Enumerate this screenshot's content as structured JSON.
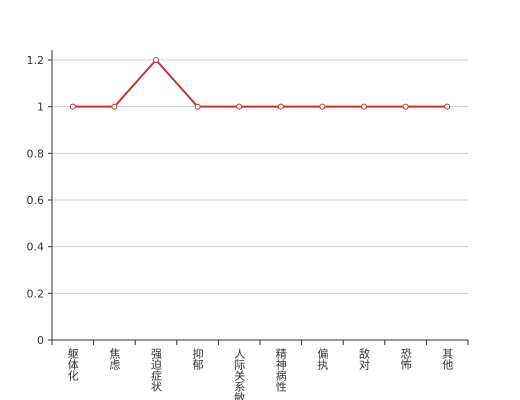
{
  "chart_data": {
    "type": "line",
    "categories": [
      "躯体化",
      "焦虑",
      "强迫症状",
      "抑郁",
      "人际关系敏感",
      "精神病性",
      "偏执",
      "敌对",
      "恐怖",
      "其他"
    ],
    "values": [
      1,
      1,
      1.2,
      1,
      1,
      1,
      1,
      1,
      1,
      1
    ],
    "color": "#c23531",
    "ylim": [
      0,
      1.2
    ],
    "yticks": [
      0,
      0.2,
      0.4,
      0.6,
      0.8,
      1,
      1.2
    ],
    "grid": true
  }
}
